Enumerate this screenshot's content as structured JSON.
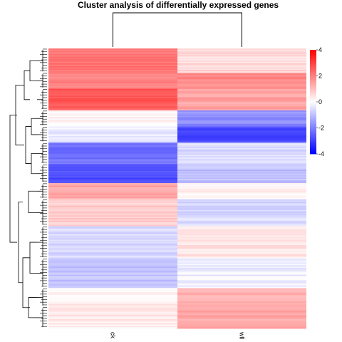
{
  "chart_data": {
    "type": "heatmap",
    "title": "Cluster analysis of differentially expressed genes",
    "columns": [
      "ck",
      "wll"
    ],
    "legend": {
      "position": "right",
      "ticks": [
        4,
        2,
        0,
        -2,
        -4
      ],
      "range": [
        -4,
        4
      ],
      "colors": {
        "low": "#0000ff",
        "mid": "#ffffff",
        "high": "#ff0000"
      }
    },
    "row_blocks": [
      {
        "rows": 18,
        "ck": 2.2,
        "wll": 0.6
      },
      {
        "rows": 12,
        "ck": 2.0,
        "wll": 1.8
      },
      {
        "rows": 16,
        "ck": 2.6,
        "wll": 1.4
      },
      {
        "rows": 12,
        "ck": 0.2,
        "wll": -1.8
      },
      {
        "rows": 12,
        "ck": -0.3,
        "wll": -2.8
      },
      {
        "rows": 16,
        "ck": -2.2,
        "wll": -0.6
      },
      {
        "rows": 14,
        "ck": -2.8,
        "wll": -1.0
      },
      {
        "rows": 12,
        "ck": 1.4,
        "wll": 0.2
      },
      {
        "rows": 20,
        "ck": 0.8,
        "wll": -0.6
      },
      {
        "rows": 24,
        "ck": -0.6,
        "wll": 0.4
      },
      {
        "rows": 22,
        "ck": -0.9,
        "wll": -0.2
      },
      {
        "rows": 14,
        "ck": 0.3,
        "wll": 1.2
      },
      {
        "rows": 16,
        "ck": 0.4,
        "wll": 1.4
      }
    ],
    "show_row_labels": false
  }
}
